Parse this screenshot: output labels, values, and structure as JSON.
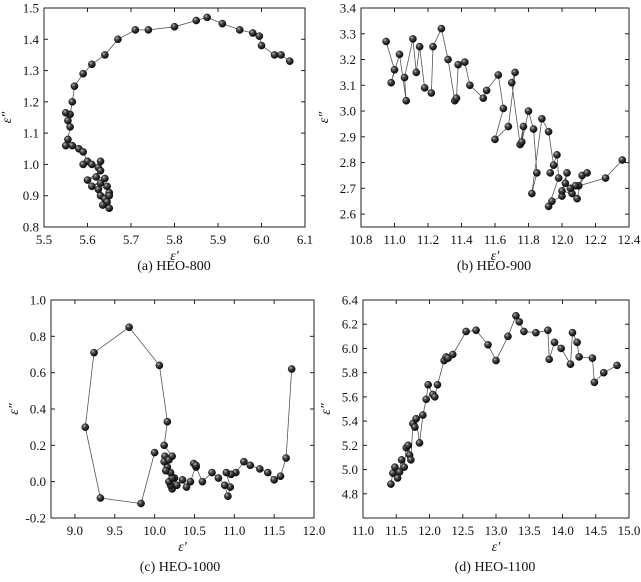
{
  "chart_data": [
    {
      "type": "scatter",
      "panel": "a",
      "caption": "(a) HEO-800",
      "xlabel": "ε′",
      "ylabel": "ε″",
      "xlim": [
        5.5,
        6.1
      ],
      "ylim": [
        0.8,
        1.5
      ],
      "xticks": [
        "5.5",
        "5.6",
        "5.7",
        "5.8",
        "5.9",
        "6.0",
        "6.1"
      ],
      "yticks": [
        "0.8",
        "0.9",
        "1.0",
        "1.1",
        "1.2",
        "1.3",
        "1.4",
        "1.5"
      ],
      "marker": "sphere",
      "connected": true,
      "points": [
        [
          6.065,
          1.33
        ],
        [
          6.045,
          1.35
        ],
        [
          6.03,
          1.35
        ],
        [
          6.0,
          1.38
        ],
        [
          5.995,
          1.41
        ],
        [
          5.98,
          1.42
        ],
        [
          5.95,
          1.43
        ],
        [
          5.91,
          1.45
        ],
        [
          5.875,
          1.47
        ],
        [
          5.85,
          1.46
        ],
        [
          5.8,
          1.44
        ],
        [
          5.74,
          1.43
        ],
        [
          5.71,
          1.43
        ],
        [
          5.67,
          1.4
        ],
        [
          5.64,
          1.35
        ],
        [
          5.61,
          1.32
        ],
        [
          5.59,
          1.29
        ],
        [
          5.57,
          1.25
        ],
        [
          5.565,
          1.2
        ],
        [
          5.56,
          1.16
        ],
        [
          5.55,
          1.165
        ],
        [
          5.555,
          1.14
        ],
        [
          5.56,
          1.12
        ],
        [
          5.555,
          1.08
        ],
        [
          5.55,
          1.06
        ],
        [
          5.565,
          1.06
        ],
        [
          5.58,
          1.05
        ],
        [
          5.59,
          1.04
        ],
        [
          5.6,
          1.01
        ],
        [
          5.59,
          1.0
        ],
        [
          5.61,
          1.0
        ],
        [
          5.625,
          0.99
        ],
        [
          5.63,
          1.01
        ],
        [
          5.63,
          0.98
        ],
        [
          5.6,
          0.95
        ],
        [
          5.62,
          0.96
        ],
        [
          5.64,
          0.955
        ],
        [
          5.61,
          0.93
        ],
        [
          5.63,
          0.94
        ],
        [
          5.625,
          0.92
        ],
        [
          5.645,
          0.93
        ],
        [
          5.65,
          0.91
        ],
        [
          5.63,
          0.9
        ],
        [
          5.64,
          0.89
        ],
        [
          5.65,
          0.9
        ],
        [
          5.645,
          0.88
        ],
        [
          5.635,
          0.87
        ],
        [
          5.65,
          0.86
        ]
      ]
    },
    {
      "type": "scatter",
      "panel": "b",
      "caption": "(b) HEO-900",
      "xlabel": "ε′",
      "ylabel": "ε″",
      "xlim": [
        10.8,
        12.4
      ],
      "ylim": [
        2.55,
        3.4
      ],
      "xticks": [
        "10.8",
        "11.0",
        "11.2",
        "11.4",
        "11.6",
        "11.8",
        "12.0",
        "12.2",
        "12.4"
      ],
      "yticks": [
        "2.6",
        "2.7",
        "2.8",
        "2.9",
        "3.0",
        "3.1",
        "3.2",
        "3.3",
        "3.4"
      ],
      "marker": "sphere",
      "connected": true,
      "points": [
        [
          10.95,
          3.27
        ],
        [
          11.0,
          3.16
        ],
        [
          10.98,
          3.11
        ],
        [
          11.03,
          3.22
        ],
        [
          11.07,
          3.04
        ],
        [
          11.06,
          3.13
        ],
        [
          11.11,
          3.28
        ],
        [
          11.13,
          3.15
        ],
        [
          11.15,
          3.25
        ],
        [
          11.18,
          3.09
        ],
        [
          11.22,
          3.07
        ],
        [
          11.23,
          3.25
        ],
        [
          11.28,
          3.32
        ],
        [
          11.32,
          3.2
        ],
        [
          11.36,
          3.04
        ],
        [
          11.37,
          3.05
        ],
        [
          11.38,
          3.18
        ],
        [
          11.42,
          3.19
        ],
        [
          11.45,
          3.1
        ],
        [
          11.53,
          3.05
        ],
        [
          11.55,
          3.08
        ],
        [
          11.62,
          3.14
        ],
        [
          11.65,
          3.01
        ],
        [
          11.6,
          2.89
        ],
        [
          11.68,
          2.94
        ],
        [
          11.72,
          3.15
        ],
        [
          11.7,
          3.11
        ],
        [
          11.75,
          2.87
        ],
        [
          11.77,
          2.94
        ],
        [
          11.76,
          2.88
        ],
        [
          11.8,
          3.0
        ],
        [
          11.83,
          2.93
        ],
        [
          11.85,
          2.76
        ],
        [
          11.82,
          2.68
        ],
        [
          11.88,
          2.97
        ],
        [
          11.92,
          2.92
        ],
        [
          11.95,
          2.79
        ],
        [
          11.93,
          2.76
        ],
        [
          11.97,
          2.83
        ],
        [
          11.98,
          2.74
        ],
        [
          11.92,
          2.63
        ],
        [
          11.94,
          2.65
        ],
        [
          12.0,
          2.67
        ],
        [
          12.02,
          2.72
        ],
        [
          12.03,
          2.76
        ],
        [
          12.0,
          2.69
        ],
        [
          12.06,
          2.68
        ],
        [
          12.09,
          2.66
        ],
        [
          12.12,
          2.75
        ],
        [
          12.15,
          2.76
        ],
        [
          12.1,
          2.71
        ],
        [
          12.08,
          2.71
        ],
        [
          12.05,
          2.7
        ],
        [
          12.26,
          2.74
        ],
        [
          12.36,
          2.81
        ]
      ]
    },
    {
      "type": "scatter",
      "panel": "c",
      "caption": "(c) HEO-1000",
      "xlabel": "ε′",
      "ylabel": "ε″",
      "xlim": [
        8.7,
        12.0
      ],
      "ylim": [
        -0.2,
        1.0
      ],
      "xticks": [
        "9.0",
        "9.5",
        "10.0",
        "10.5",
        "11.0",
        "11.5",
        "12.0"
      ],
      "yticks": [
        "-0.2",
        "0.0",
        "0.2",
        "0.4",
        "0.6",
        "0.8",
        "1.0"
      ],
      "marker": "sphere",
      "connected": true,
      "points": [
        [
          11.72,
          0.62
        ],
        [
          11.65,
          0.13
        ],
        [
          11.58,
          0.03
        ],
        [
          11.5,
          0.01
        ],
        [
          11.42,
          0.05
        ],
        [
          11.32,
          0.07
        ],
        [
          11.2,
          0.09
        ],
        [
          11.12,
          0.11
        ],
        [
          11.02,
          0.05
        ],
        [
          10.96,
          0.04
        ],
        [
          10.9,
          0.05
        ],
        [
          10.95,
          -0.03
        ],
        [
          10.92,
          -0.08
        ],
        [
          10.88,
          -0.02
        ],
        [
          10.8,
          0.02
        ],
        [
          10.72,
          0.05
        ],
        [
          10.6,
          0.0
        ],
        [
          10.52,
          0.08
        ],
        [
          10.49,
          0.1
        ],
        [
          10.52,
          0.09
        ],
        [
          10.45,
          0.0
        ],
        [
          10.4,
          -0.03
        ],
        [
          10.35,
          0.01
        ],
        [
          10.28,
          -0.02
        ],
        [
          10.25,
          0.02
        ],
        [
          10.22,
          -0.04
        ],
        [
          10.2,
          -0.02
        ],
        [
          10.18,
          0.0
        ],
        [
          10.22,
          0.02
        ],
        [
          10.2,
          0.05
        ],
        [
          10.16,
          0.08
        ],
        [
          10.14,
          0.06
        ],
        [
          10.13,
          0.14
        ],
        [
          10.12,
          0.11
        ],
        [
          10.18,
          0.12
        ],
        [
          10.22,
          0.14
        ],
        [
          10.12,
          0.2
        ],
        [
          10.16,
          0.33
        ],
        [
          10.06,
          0.64
        ],
        [
          9.68,
          0.85
        ],
        [
          9.24,
          0.71
        ],
        [
          9.13,
          0.3
        ],
        [
          9.32,
          -0.09
        ],
        [
          9.83,
          -0.12
        ],
        [
          10.0,
          0.16
        ]
      ]
    },
    {
      "type": "scatter",
      "panel": "d",
      "caption": "(d) HEO-1100",
      "xlabel": "ε′",
      "ylabel": "ε″",
      "xlim": [
        11.0,
        15.0
      ],
      "ylim": [
        4.6,
        6.4
      ],
      "xticks": [
        "11.0",
        "11.5",
        "12.0",
        "12.5",
        "13.0",
        "13.5",
        "14.0",
        "14.5",
        "15.0"
      ],
      "yticks": [
        "4.8",
        "5.0",
        "5.2",
        "5.4",
        "5.6",
        "5.8",
        "6.0",
        "6.2",
        "6.4"
      ],
      "marker": "sphere",
      "connected": true,
      "points": [
        [
          11.42,
          4.88
        ],
        [
          11.45,
          4.97
        ],
        [
          11.48,
          5.02
        ],
        [
          11.55,
          4.98
        ],
        [
          11.52,
          4.93
        ],
        [
          11.58,
          5.08
        ],
        [
          11.62,
          5.02
        ],
        [
          11.65,
          5.18
        ],
        [
          11.7,
          5.12
        ],
        [
          11.68,
          5.2
        ],
        [
          11.72,
          5.08
        ],
        [
          11.75,
          5.38
        ],
        [
          11.78,
          5.35
        ],
        [
          11.8,
          5.42
        ],
        [
          11.85,
          5.22
        ],
        [
          11.9,
          5.45
        ],
        [
          11.95,
          5.58
        ],
        [
          11.98,
          5.7
        ],
        [
          12.05,
          5.62
        ],
        [
          12.08,
          5.6
        ],
        [
          12.12,
          5.7
        ],
        [
          12.22,
          5.9
        ],
        [
          12.25,
          5.93
        ],
        [
          12.28,
          5.92
        ],
        [
          12.35,
          5.95
        ],
        [
          12.55,
          6.14
        ],
        [
          12.7,
          6.15
        ],
        [
          12.88,
          6.03
        ],
        [
          13.0,
          5.9
        ],
        [
          13.18,
          6.1
        ],
        [
          13.3,
          6.27
        ],
        [
          13.35,
          6.22
        ],
        [
          13.42,
          6.14
        ],
        [
          13.6,
          6.13
        ],
        [
          13.78,
          6.15
        ],
        [
          13.8,
          5.91
        ],
        [
          13.88,
          6.05
        ],
        [
          13.98,
          6.0
        ],
        [
          14.12,
          5.87
        ],
        [
          14.15,
          6.13
        ],
        [
          14.22,
          6.05
        ],
        [
          14.25,
          5.93
        ],
        [
          14.45,
          5.92
        ],
        [
          14.48,
          5.72
        ],
        [
          14.62,
          5.8
        ],
        [
          14.82,
          5.86
        ]
      ]
    }
  ]
}
